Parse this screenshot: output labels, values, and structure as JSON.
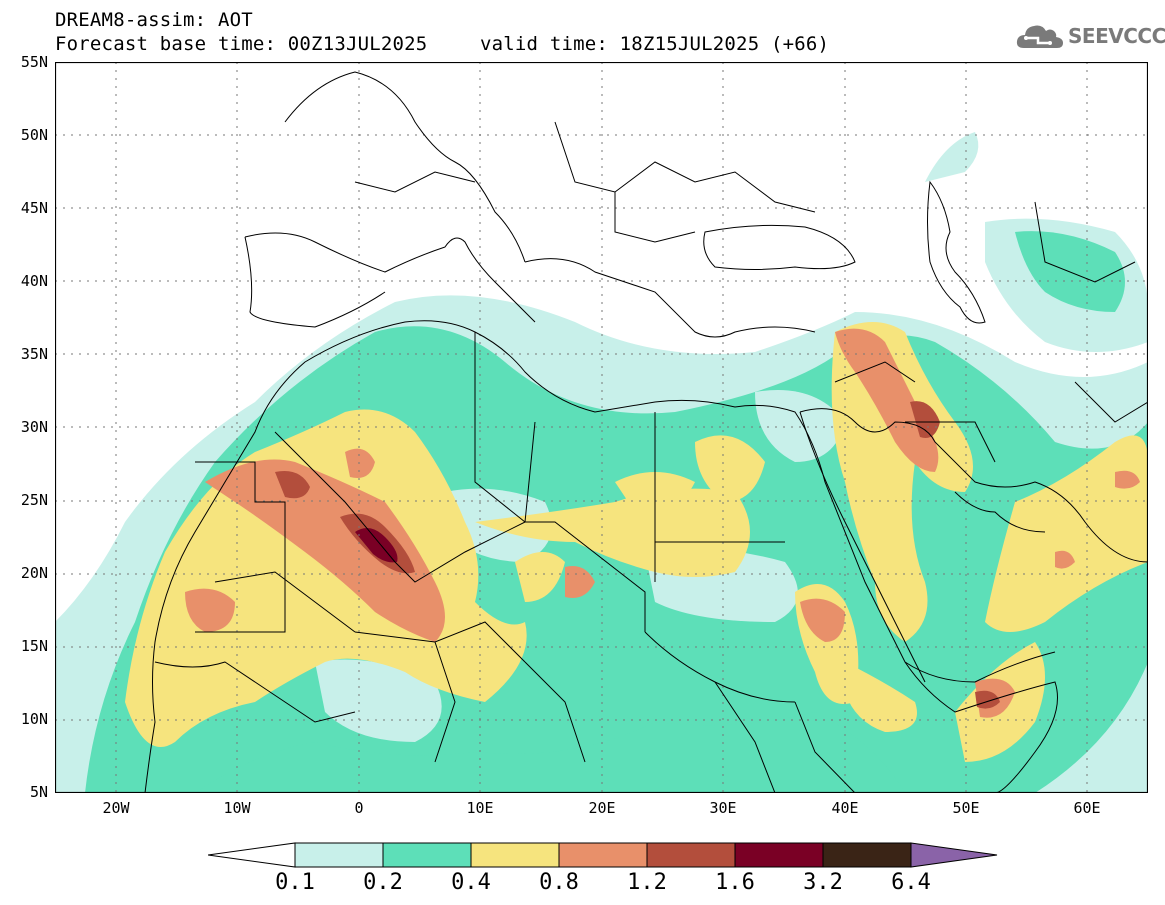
{
  "title": {
    "line1": "DREAM8-assim: AOT",
    "line2_left": "Forecast base time: 00Z13JUL2025",
    "line2_right": "valid time: 18Z15JUL2025 (+66)"
  },
  "logo": {
    "text": "SEEVCCC",
    "icon": "cloud-icon"
  },
  "map": {
    "projection": "lat-lon",
    "lon_range": [
      -25,
      65
    ],
    "lat_range": [
      5,
      55
    ],
    "gridlines": true,
    "lat_labels": [
      "55N",
      "50N",
      "45N",
      "40N",
      "35N",
      "30N",
      "25N",
      "20N",
      "15N",
      "10N",
      "5N"
    ],
    "lon_labels": [
      "20W",
      "10W",
      "0",
      "10E",
      "20E",
      "30E",
      "40E",
      "50E",
      "60E"
    ]
  },
  "colorbar": {
    "labels": [
      "0.1",
      "0.2",
      "0.4",
      "0.8",
      "1.2",
      "1.6",
      "3.2",
      "6.4"
    ],
    "colors": [
      "#c8f0ea",
      "#5ddfb8",
      "#f6e47e",
      "#e8906a",
      "#b34e3c",
      "#7a0025",
      "#3a2416",
      "#8a63a8"
    ]
  },
  "chart_data": {
    "type": "heatmap",
    "variable": "AOT",
    "levels": [
      0.1,
      0.2,
      0.4,
      0.8,
      1.2,
      1.6,
      3.2,
      6.4
    ],
    "maxima": [
      {
        "lon": 1,
        "lat": 22,
        "level": 3.2
      },
      {
        "lon": -5,
        "lat": 25,
        "level": 1.6
      },
      {
        "lon": 47,
        "lat": 30,
        "level": 1.6
      },
      {
        "lon": 52,
        "lat": 11,
        "level": 1.2
      },
      {
        "lon": 34,
        "lat": 16,
        "level": 1.2
      }
    ]
  }
}
